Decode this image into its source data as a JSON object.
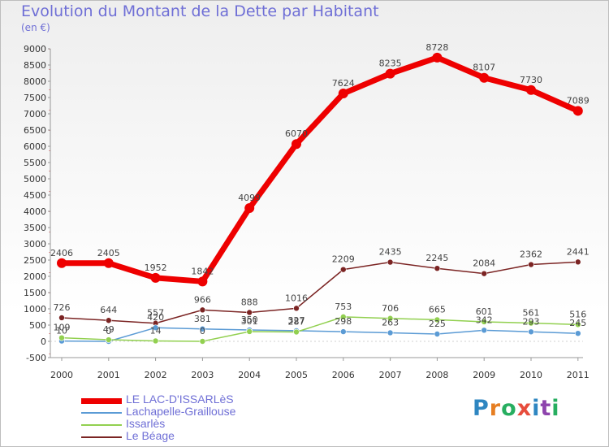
{
  "title": "Evolution du Montant de la Dette par Habitant",
  "subtitle": "(en €)",
  "chart_data": {
    "type": "line",
    "title": "Evolution du Montant de la Dette par Habitant",
    "ylabel": "(en €)",
    "xlabel": "",
    "x": [
      "2000",
      "2001",
      "2002",
      "2003",
      "2004",
      "2005",
      "2006",
      "2007",
      "2008",
      "2009",
      "2010",
      "2011"
    ],
    "ylim": [
      -500,
      9000
    ],
    "yticks": [
      -500,
      0,
      500,
      1000,
      1500,
      2000,
      2500,
      3000,
      3500,
      4000,
      4500,
      5000,
      5500,
      6000,
      6500,
      7000,
      7500,
      8000,
      8500,
      9000
    ],
    "grid": false,
    "legend_position": "bottom-left",
    "series": [
      {
        "name": "LE LAC-D'ISSARLèS",
        "color": "#ee0000",
        "width": 7,
        "markerR": 6,
        "values": [
          2406,
          2405,
          1952,
          1842,
          4099,
          6070,
          7624,
          8235,
          8728,
          8107,
          7730,
          7089
        ],
        "labels": [
          "2406",
          "2405",
          "1952",
          "1842",
          "4099",
          "6070",
          "7624",
          "8235",
          "8728",
          "8107",
          "7730",
          "7089"
        ]
      },
      {
        "name": "Lachapelle-Graillouse",
        "color": "#5b9bd5",
        "width": 1.5,
        "markerR": 3.5,
        "values": [
          10,
          0,
          420,
          381,
          350,
          327,
          298,
          263,
          225,
          342,
          293,
          245
        ],
        "labels": [
          "10",
          "0",
          "420",
          "381",
          "350",
          "327",
          "298",
          "263",
          "225",
          "342",
          "293",
          "245"
        ]
      },
      {
        "name": "Issarlès",
        "color": "#92d050",
        "width": 1.5,
        "markerR": 3.5,
        "values": [
          109,
          49,
          14,
          0,
          301,
          287,
          753,
          706,
          665,
          601,
          561,
          516
        ],
        "labels": [
          "109",
          "49",
          "14",
          "0",
          "301",
          "287",
          "753",
          "706",
          "665",
          "601",
          "561",
          "516"
        ]
      },
      {
        "name": "Le Béage",
        "color": "#7b2423",
        "width": 1.5,
        "markerR": 3.5,
        "values": [
          726,
          644,
          557,
          966,
          888,
          1016,
          2209,
          2435,
          2245,
          2084,
          2362,
          2441
        ],
        "labels": [
          "726",
          "644",
          "557",
          "966",
          "888",
          "1016",
          "2209",
          "2435",
          "2245",
          "2084",
          "2362",
          "2441"
        ]
      }
    ]
  },
  "legend": [
    {
      "label": "LE LAC-D'ISSARLèS",
      "color": "#ee0000"
    },
    {
      "label": "Lachapelle-Graillouse",
      "color": "#5b9bd5"
    },
    {
      "label": "Issarlès",
      "color": "#92d050"
    },
    {
      "label": "Le Béage",
      "color": "#7b2423"
    }
  ],
  "logo": {
    "text": "Proxiti"
  }
}
